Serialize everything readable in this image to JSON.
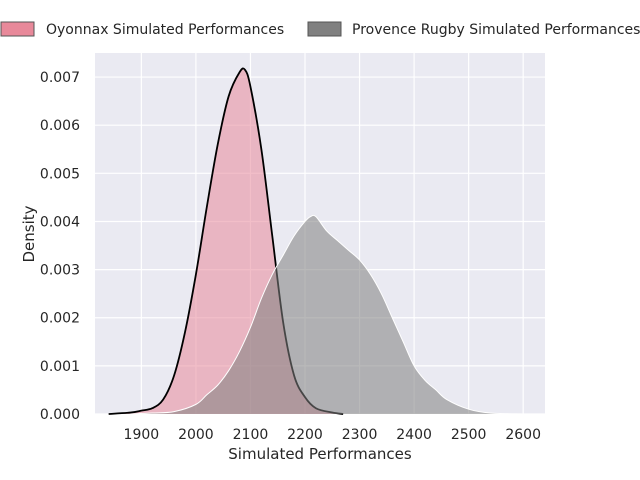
{
  "chart_data": {
    "type": "area",
    "title": "",
    "xlabel": "Simulated Performances",
    "ylabel": "Density",
    "xlim": [
      1815,
      2640
    ],
    "ylim": [
      0,
      0.0075
    ],
    "xticks": [
      1900,
      2000,
      2100,
      2200,
      2300,
      2400,
      2500,
      2600
    ],
    "yticks": [
      0.0,
      0.001,
      0.002,
      0.003,
      0.004,
      0.005,
      0.006,
      0.007
    ],
    "xtick_labels": [
      "1900",
      "2000",
      "2100",
      "2200",
      "2300",
      "2400",
      "2500",
      "2600"
    ],
    "ytick_labels": [
      "0.000",
      "0.001",
      "0.002",
      "0.003",
      "0.004",
      "0.005",
      "0.006",
      "0.007"
    ],
    "grid": true,
    "legend_position": "top",
    "series": [
      {
        "name": "Oyonnax Simulated Performances",
        "fill": "#e8899a",
        "fill_opacity": 0.55,
        "stroke": "#000000",
        "points": [
          [
            1840,
            0
          ],
          [
            1880,
            3e-05
          ],
          [
            1900,
            7e-05
          ],
          [
            1920,
            0.00012
          ],
          [
            1940,
            0.0003
          ],
          [
            1960,
            0.0008
          ],
          [
            1980,
            0.0017
          ],
          [
            2000,
            0.0029
          ],
          [
            2020,
            0.0043
          ],
          [
            2040,
            0.0056
          ],
          [
            2060,
            0.0066
          ],
          [
            2080,
            0.0071
          ],
          [
            2090,
            0.00715
          ],
          [
            2100,
            0.0068
          ],
          [
            2120,
            0.0055
          ],
          [
            2140,
            0.0037
          ],
          [
            2160,
            0.0019
          ],
          [
            2180,
            0.0008
          ],
          [
            2200,
            0.00035
          ],
          [
            2220,
            0.00012
          ],
          [
            2250,
            3e-05
          ],
          [
            2270,
            0
          ]
        ]
      },
      {
        "name": "Provence Rugby Simulated Performances",
        "fill": "#7f7f7f",
        "fill_opacity": 0.55,
        "stroke": "#ffffff",
        "points": [
          [
            1880,
            0
          ],
          [
            1920,
            2e-05
          ],
          [
            1960,
            5e-05
          ],
          [
            2000,
            0.0002
          ],
          [
            2020,
            0.0004
          ],
          [
            2040,
            0.0006
          ],
          [
            2060,
            0.0009
          ],
          [
            2080,
            0.0013
          ],
          [
            2100,
            0.0018
          ],
          [
            2120,
            0.0024
          ],
          [
            2140,
            0.0029
          ],
          [
            2160,
            0.0033
          ],
          [
            2180,
            0.0037
          ],
          [
            2200,
            0.004
          ],
          [
            2210,
            0.0041
          ],
          [
            2220,
            0.0041
          ],
          [
            2240,
            0.0038
          ],
          [
            2260,
            0.0036
          ],
          [
            2280,
            0.0034
          ],
          [
            2300,
            0.0032
          ],
          [
            2320,
            0.0029
          ],
          [
            2340,
            0.0025
          ],
          [
            2360,
            0.002
          ],
          [
            2380,
            0.0015
          ],
          [
            2400,
            0.001
          ],
          [
            2420,
            0.0007
          ],
          [
            2440,
            0.0005
          ],
          [
            2460,
            0.0003
          ],
          [
            2500,
            0.0001
          ],
          [
            2540,
            2e-05
          ],
          [
            2600,
            0
          ]
        ]
      }
    ]
  }
}
